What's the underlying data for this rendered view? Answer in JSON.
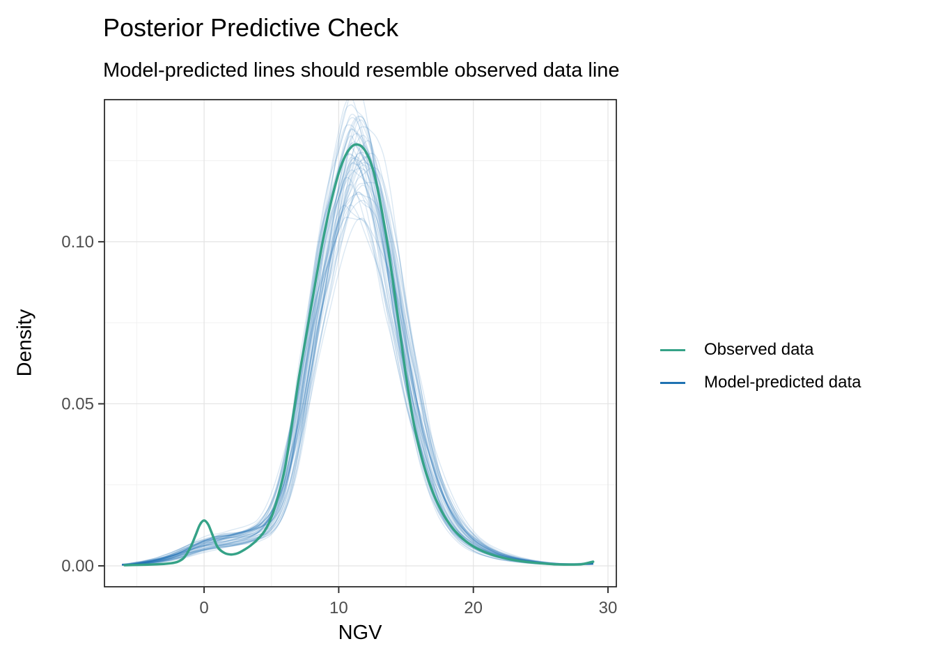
{
  "chart_data": {
    "type": "line",
    "title": "Posterior Predictive Check",
    "subtitle": "Model-predicted lines should resemble observed data line",
    "xlabel": "NGV",
    "ylabel": "Density",
    "xlim": [
      -7.4,
      30.62
    ],
    "ylim": [
      -0.00645,
      0.14384
    ],
    "grid": true,
    "x_ticks": [
      {
        "label": "0",
        "value": 0
      },
      {
        "label": "10",
        "value": 10
      },
      {
        "label": "20",
        "value": 20
      },
      {
        "label": "30",
        "value": 30
      }
    ],
    "x_minor_ticks": [
      -5,
      5,
      15,
      25
    ],
    "y_ticks": [
      {
        "label": "0.00",
        "value": 0
      },
      {
        "label": "0.05",
        "value": 0.05
      },
      {
        "label": "0.10",
        "value": 0.1
      }
    ],
    "y_minor_ticks": [
      0.025,
      0.075,
      0.125
    ],
    "colors": {
      "observed": "#35a287",
      "predicted": "#1f72b2",
      "grid_major": "#e3e3e3",
      "grid_minor": "#f1f1f1",
      "panel_border": "#1f1f1f",
      "tick_mark": "#333333",
      "tick_text": "#4d4d4d"
    },
    "legend": {
      "position": "right-center",
      "entries": [
        {
          "label": "Observed data",
          "color": "#35a287"
        },
        {
          "label": "Model-predicted data",
          "color": "#1f72b2"
        }
      ]
    },
    "observed_curve": {
      "name": "Observed data",
      "color": "#35a287",
      "line_width": 3.5,
      "x": [
        -5.9,
        -5,
        -4,
        -3,
        -2.5,
        -2,
        -1.5,
        -1,
        -0.6,
        -0.3,
        0,
        0.3,
        0.6,
        1,
        1.5,
        2,
        2.5,
        3,
        3.5,
        4,
        4.5,
        5,
        5.5,
        6,
        6.5,
        7,
        7.5,
        8,
        8.5,
        9,
        9.5,
        10,
        10.5,
        11,
        11.4,
        11.8,
        12.2,
        12.6,
        13,
        13.5,
        14,
        14.5,
        15,
        15.5,
        16,
        16.5,
        17,
        17.5,
        18,
        18.5,
        19,
        19.5,
        20,
        20.5,
        21,
        21.5,
        22,
        23,
        24,
        25,
        26,
        27,
        28,
        28.5,
        28.9
      ],
      "density": [
        0.0002,
        0.0003,
        0.0004,
        0.0006,
        0.0008,
        0.0012,
        0.0025,
        0.0058,
        0.0098,
        0.0128,
        0.014,
        0.0128,
        0.0098,
        0.0058,
        0.004,
        0.0035,
        0.0039,
        0.005,
        0.0064,
        0.0083,
        0.0108,
        0.015,
        0.0215,
        0.03,
        0.043,
        0.057,
        0.069,
        0.081,
        0.093,
        0.104,
        0.1135,
        0.1212,
        0.1266,
        0.1295,
        0.13,
        0.129,
        0.1262,
        0.1215,
        0.114,
        0.1025,
        0.0885,
        0.0735,
        0.0585,
        0.0455,
        0.036,
        0.0285,
        0.0226,
        0.018,
        0.0143,
        0.0114,
        0.0092,
        0.0074,
        0.006,
        0.0049,
        0.004,
        0.0033,
        0.0027,
        0.0018,
        0.0012,
        0.0008,
        0.0005,
        0.0004,
        0.0005,
        0.0009,
        0.0013
      ]
    },
    "predicted_curves": {
      "name": "Model-predicted data",
      "color": "#1f72b2",
      "alpha": 0.16,
      "line_width": 1.4,
      "n_lines": 50,
      "seed": 42,
      "peak_shift_range": [
        -0.6,
        0.6
      ],
      "amplitude_range": [
        0.88,
        1.1
      ],
      "tail_spread": 0.3,
      "base_x": [
        -5.9,
        -5,
        -4,
        -3,
        -2,
        -1,
        0,
        1,
        2,
        3,
        3.7,
        4.5,
        5,
        5.5,
        6,
        6.5,
        7,
        7.5,
        8,
        8.5,
        9,
        9.5,
        10,
        10.5,
        11,
        11.4,
        12,
        12.5,
        13,
        13.5,
        14,
        14.5,
        15,
        15.5,
        16,
        16.5,
        17,
        17.5,
        18,
        18.5,
        19,
        19.5,
        20,
        20.5,
        21,
        22,
        23,
        24,
        25,
        26,
        27,
        28,
        28.9
      ],
      "base_density": [
        0.0003,
        0.0006,
        0.0012,
        0.002,
        0.0032,
        0.0048,
        0.0063,
        0.0074,
        0.008,
        0.0088,
        0.0097,
        0.0115,
        0.014,
        0.018,
        0.0243,
        0.033,
        0.0438,
        0.056,
        0.0688,
        0.0815,
        0.0935,
        0.104,
        0.113,
        0.1205,
        0.1258,
        0.1262,
        0.1238,
        0.1185,
        0.1105,
        0.1005,
        0.0893,
        0.0773,
        0.0653,
        0.054,
        0.0438,
        0.035,
        0.0277,
        0.0219,
        0.0173,
        0.0137,
        0.0109,
        0.0088,
        0.0071,
        0.0058,
        0.0047,
        0.0031,
        0.0021,
        0.0014,
        0.0009,
        0.0006,
        0.0005,
        0.0005,
        0.0007
      ]
    }
  }
}
